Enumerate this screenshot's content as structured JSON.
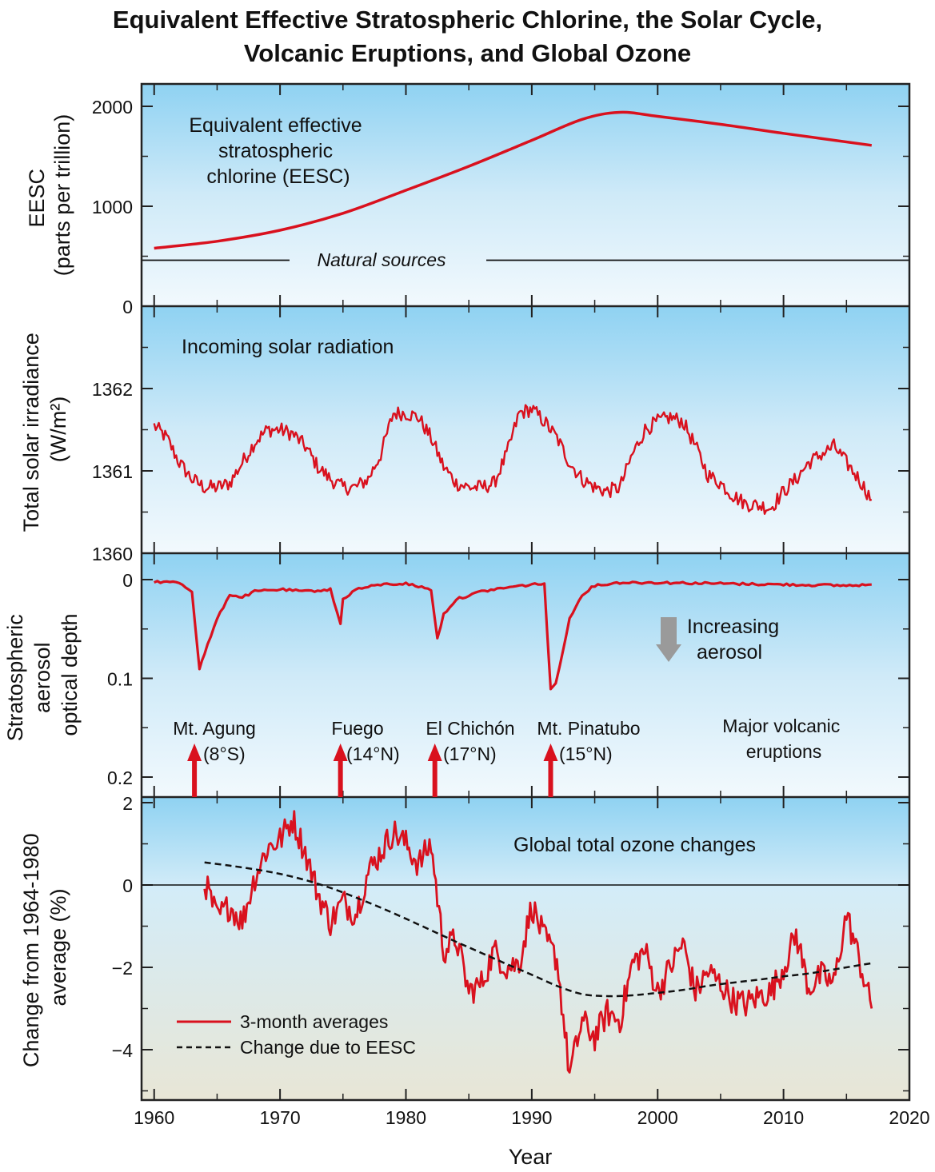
{
  "title_line1": "Equivalent Effective Stratospheric Chlorine, the Solar Cycle,",
  "title_line2": "Volcanic Eruptions, and Global Ozone",
  "colors": {
    "series_red": "#d9111e",
    "sky_top": "#8fd2f2",
    "sky_mid": "#cfeaf8",
    "sky_bottom": "#f2f9fd",
    "ozone_bottom": "#e8e6d6",
    "arrow_gray": "#9a9a9a"
  },
  "x_axis": {
    "label": "Year",
    "range": [
      1959,
      2020
    ],
    "ticks": [
      "1960",
      "1970",
      "1980",
      "1990",
      "2000",
      "2010",
      "2020"
    ]
  },
  "panels": {
    "eesc": {
      "ylabel_line1": "EESC",
      "ylabel_line2": "(parts per trillion)",
      "ticks": [
        "2000",
        "1000",
        "0"
      ],
      "annotation_lines": [
        "Equivalent effective",
        "stratospheric",
        "chlorine (EESC)"
      ],
      "natural_sources_label": "Natural sources"
    },
    "solar": {
      "ylabel_line1": "Total solar irradiance",
      "ylabel_line2": "(W/m²)",
      "ticks": [
        "1362",
        "1361",
        "1360"
      ],
      "annotation": "Incoming solar radiation"
    },
    "aerosol": {
      "ylabel_line1": "Stratospheric",
      "ylabel_line2": "aerosol",
      "ylabel_line3": "optical depth",
      "ticks": [
        "0",
        "0.1",
        "0.2"
      ],
      "increasing_line1": "Increasing",
      "increasing_line2": "aerosol",
      "eruptions_label_line1": "Major volcanic",
      "eruptions_label_line2": "eruptions",
      "eruptions": [
        {
          "name": "Mt. Agung",
          "lat": "(8°S)",
          "year": 1963.2
        },
        {
          "name": "Fuego",
          "lat": "(14°N)",
          "year": 1974.8
        },
        {
          "name": "El Chichón",
          "lat": "(17°N)",
          "year": 1982.3
        },
        {
          "name": "Mt. Pinatubo",
          "lat": "(15°N)",
          "year": 1991.5
        }
      ]
    },
    "ozone": {
      "ylabel_line1": "Change from 1964-1980",
      "ylabel_line2": "average (%)",
      "ticks": [
        "2",
        "0",
        "−2",
        "−4"
      ],
      "annotation": "Global total ozone changes",
      "legend_red": "3-month averages",
      "legend_dashed": "Change due to EESC"
    }
  },
  "chart_data": [
    {
      "type": "line",
      "ylabel": "EESC (parts per trillion)",
      "ylim": [
        0,
        2000
      ],
      "series": [
        {
          "name": "Equivalent effective stratospheric chlorine (EESC)",
          "x": [
            1960,
            1965,
            1970,
            1975,
            1980,
            1985,
            1990,
            1994,
            1997,
            2000,
            2005,
            2010,
            2017
          ],
          "y": [
            580,
            650,
            760,
            930,
            1160,
            1400,
            1660,
            1870,
            1940,
            1900,
            1820,
            1730,
            1610
          ]
        },
        {
          "name": "Natural sources",
          "x": [
            1959,
            2020
          ],
          "y": [
            460,
            460
          ]
        }
      ]
    },
    {
      "type": "line",
      "ylabel": "Total solar irradiance (W/m²)",
      "ylim": [
        1360,
        1363
      ],
      "series": [
        {
          "name": "Incoming solar radiation",
          "x": [
            1960,
            1961,
            1962,
            1963,
            1964,
            1965,
            1966,
            1967,
            1968,
            1969,
            1970,
            1971,
            1972,
            1973,
            1974,
            1975,
            1976,
            1977,
            1978,
            1979,
            1980,
            1981,
            1982,
            1983,
            1984,
            1985,
            1986,
            1987,
            1988,
            1989,
            1990,
            1991,
            1992,
            1993,
            1994,
            1995,
            1996,
            1997,
            1998,
            1999,
            2000,
            2001,
            2002,
            2003,
            2004,
            2005,
            2006,
            2007,
            2008,
            2009,
            2010,
            2011,
            2012,
            2013,
            2014,
            2015,
            2016,
            2017
          ],
          "y": [
            1361.55,
            1361.4,
            1361.1,
            1360.9,
            1360.8,
            1360.8,
            1360.85,
            1361.1,
            1361.35,
            1361.5,
            1361.5,
            1361.45,
            1361.3,
            1361.05,
            1360.9,
            1360.8,
            1360.8,
            1360.9,
            1361.2,
            1361.7,
            1361.7,
            1361.65,
            1361.4,
            1361.05,
            1360.85,
            1360.8,
            1360.8,
            1360.85,
            1361.2,
            1361.7,
            1361.75,
            1361.6,
            1361.4,
            1361.1,
            1360.9,
            1360.8,
            1360.75,
            1360.8,
            1361.2,
            1361.5,
            1361.6,
            1361.65,
            1361.6,
            1361.3,
            1360.95,
            1360.85,
            1360.7,
            1360.6,
            1360.58,
            1360.55,
            1360.75,
            1360.9,
            1361.1,
            1361.2,
            1361.3,
            1361.1,
            1360.9,
            1360.65
          ]
        }
      ]
    },
    {
      "type": "line",
      "ylabel": "Stratospheric aerosol optical depth",
      "ylim": [
        0,
        0.2
      ],
      "series": [
        {
          "name": "Stratospheric aerosol optical depth",
          "x": [
            1960,
            1962,
            1963,
            1963.6,
            1964,
            1965,
            1966,
            1967,
            1968,
            1970,
            1972,
            1974,
            1974.8,
            1975,
            1976,
            1978,
            1980,
            1982,
            1982.5,
            1983,
            1984,
            1986,
            1988,
            1990,
            1991,
            1991.5,
            1991.9,
            1992.5,
            1993,
            1994,
            1995,
            1997,
            2000,
            2005,
            2010,
            2015,
            2017
          ],
          "y": [
            0.002,
            0.003,
            0.012,
            0.09,
            0.075,
            0.04,
            0.015,
            0.018,
            0.012,
            0.01,
            0.012,
            0.01,
            0.045,
            0.02,
            0.01,
            0.005,
            0.004,
            0.01,
            0.06,
            0.035,
            0.02,
            0.012,
            0.008,
            0.005,
            0.004,
            0.112,
            0.105,
            0.07,
            0.04,
            0.015,
            0.006,
            0.003,
            0.003,
            0.004,
            0.005,
            0.006,
            0.005
          ]
        }
      ]
    },
    {
      "type": "line",
      "ylabel": "Change from 1964-1980 average (%)",
      "ylim": [
        -5.2,
        2
      ],
      "series": [
        {
          "name": "3-month averages",
          "x": [
            1964,
            1965,
            1966,
            1967,
            1968,
            1969,
            1970,
            1971,
            1972,
            1973,
            1974,
            1975,
            1976,
            1977,
            1978,
            1979,
            1980,
            1981,
            1982,
            1983,
            1984,
            1985,
            1986,
            1987,
            1988,
            1989,
            1990,
            1991,
            1992,
            1993,
            1994,
            1995,
            1996,
            1997,
            1998,
            1999,
            2000,
            2001,
            2002,
            2003,
            2004,
            2005,
            2006,
            2007,
            2008,
            2009,
            2010,
            2011,
            2012,
            2013,
            2014,
            2015,
            2016,
            2017
          ],
          "y": [
            0.1,
            -0.8,
            -0.5,
            -0.9,
            0.2,
            0.9,
            1.1,
            1.6,
            0.8,
            -0.2,
            -0.9,
            -0.4,
            -0.7,
            0.3,
            0.8,
            1.3,
            1.0,
            0.5,
            1.0,
            -1.6,
            -1.3,
            -2.6,
            -2.4,
            -1.6,
            -2.0,
            -1.9,
            -0.5,
            -1.3,
            -1.8,
            -4.6,
            -3.3,
            -3.7,
            -3.1,
            -3.3,
            -1.9,
            -1.6,
            -2.6,
            -2.0,
            -1.4,
            -2.6,
            -2.1,
            -2.4,
            -2.8,
            -2.9,
            -2.7,
            -2.6,
            -2.0,
            -1.2,
            -2.5,
            -2.2,
            -2.4,
            -0.7,
            -1.8,
            -3.0
          ]
        },
        {
          "name": "Change due to EESC",
          "x": [
            1964,
            1966,
            1968,
            1970,
            1972,
            1974,
            1976,
            1978,
            1980,
            1982,
            1984,
            1986,
            1988,
            1990,
            1992,
            1994,
            1996,
            1998,
            2000,
            2002,
            2004,
            2006,
            2008,
            2010,
            2012,
            2014,
            2016,
            2017
          ],
          "y": [
            0.55,
            0.47,
            0.38,
            0.27,
            0.12,
            -0.07,
            -0.3,
            -0.55,
            -0.82,
            -1.1,
            -1.38,
            -1.65,
            -1.92,
            -2.18,
            -2.45,
            -2.65,
            -2.7,
            -2.68,
            -2.62,
            -2.55,
            -2.45,
            -2.37,
            -2.3,
            -2.22,
            -2.15,
            -2.05,
            -1.95,
            -1.9
          ]
        }
      ]
    }
  ]
}
